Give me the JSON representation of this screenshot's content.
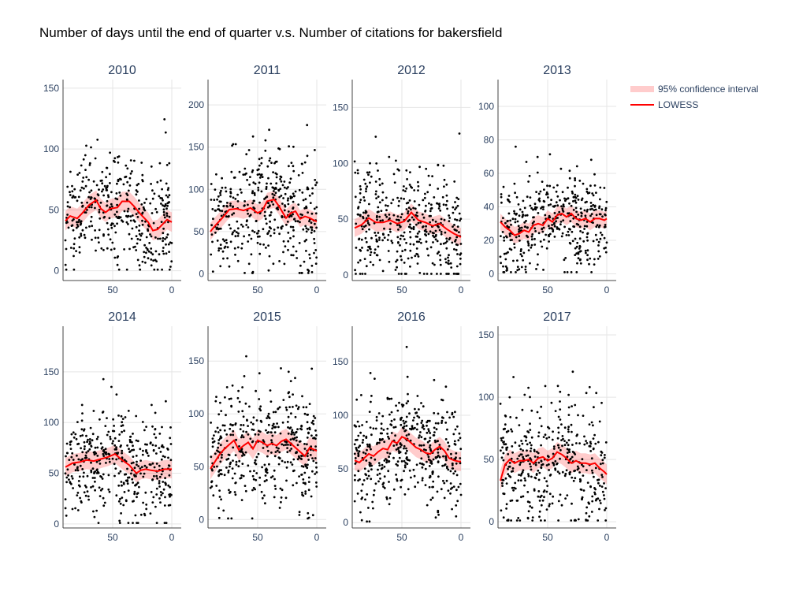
{
  "title": "Number of days until the end of quarter v.s. Number of citations for bakersfield",
  "colors": {
    "points": "#000000",
    "lowess": "#ff0000",
    "band": "rgba(255,0,0,0.2)",
    "grid": "#e5e5e5",
    "tick_text": "#2a3f5f",
    "axis": "#444444"
  },
  "legend": {
    "band_label": "95% confidence interval",
    "line_label": "LOWESS",
    "placement": "top-right"
  },
  "chart_data": [
    {
      "type": "scatter",
      "title": "2010",
      "xlim": [
        92,
        -8
      ],
      "ylim": [
        -8,
        157
      ],
      "xticks": [
        50,
        0
      ],
      "yticks": [
        0,
        50,
        100,
        150
      ],
      "lowess": {
        "x": [
          90,
          86,
          80,
          76,
          70,
          64,
          60,
          56,
          52,
          46,
          42,
          36,
          32,
          26,
          20,
          16,
          12,
          8,
          4,
          0
        ],
        "y": [
          41,
          45,
          43,
          47,
          54,
          58,
          51,
          48,
          51,
          52,
          57,
          57,
          53,
          46,
          40,
          33,
          34,
          38,
          42,
          40
        ]
      },
      "band_halfwidth": 8,
      "n_points": 390,
      "seed": 11,
      "scatter_mean": 47,
      "scatter_sd": 28,
      "scatter_max": 150
    },
    {
      "type": "scatter",
      "title": "2011",
      "xlim": [
        92,
        -8
      ],
      "ylim": [
        -8,
        230
      ],
      "xticks": [
        50,
        0
      ],
      "yticks": [
        0,
        50,
        100,
        150,
        200
      ],
      "lowess": {
        "x": [
          90,
          86,
          80,
          74,
          68,
          62,
          56,
          50,
          46,
          42,
          36,
          32,
          26,
          22,
          18,
          14,
          10,
          6,
          2,
          0
        ],
        "y": [
          50,
          57,
          66,
          76,
          77,
          75,
          78,
          72,
          75,
          86,
          88,
          80,
          66,
          72,
          74,
          65,
          68,
          66,
          63,
          62
        ]
      },
      "band_halfwidth": 10,
      "n_points": 420,
      "seed": 22,
      "scatter_mean": 72,
      "scatter_sd": 40,
      "scatter_max": 215
    },
    {
      "type": "scatter",
      "title": "2012",
      "xlim": [
        92,
        -8
      ],
      "ylim": [
        -5,
        175
      ],
      "xticks": [
        50,
        0
      ],
      "yticks": [
        0,
        50,
        100,
        150
      ],
      "lowess": {
        "x": [
          90,
          84,
          78,
          72,
          66,
          60,
          54,
          48,
          42,
          36,
          30,
          24,
          18,
          12,
          6,
          0
        ],
        "y": [
          42,
          45,
          51,
          47,
          47,
          49,
          46,
          48,
          56,
          49,
          47,
          44,
          46,
          41,
          37,
          34
        ]
      },
      "band_halfwidth": 8,
      "n_points": 420,
      "seed": 33,
      "scatter_mean": 50,
      "scatter_sd": 30,
      "scatter_max": 168
    },
    {
      "type": "scatter",
      "title": "2013",
      "xlim": [
        92,
        -8
      ],
      "ylim": [
        -4,
        116
      ],
      "xticks": [
        50,
        0
      ],
      "yticks": [
        0,
        20,
        40,
        60,
        80,
        100
      ],
      "lowess": {
        "x": [
          90,
          86,
          82,
          78,
          74,
          70,
          66,
          62,
          58,
          54,
          50,
          46,
          42,
          38,
          34,
          30,
          26,
          22,
          18,
          14,
          10,
          6,
          2,
          0
        ],
        "y": [
          31,
          28,
          26,
          23,
          24,
          26,
          25,
          29,
          30,
          29,
          33,
          31,
          35,
          36,
          34,
          36,
          33,
          32,
          33,
          31,
          33,
          33,
          32,
          33
        ]
      },
      "band_halfwidth": 5,
      "n_points": 420,
      "seed": 44,
      "scatter_mean": 32,
      "scatter_sd": 18,
      "scatter_max": 112
    },
    {
      "type": "scatter",
      "title": "2014",
      "xlim": [
        92,
        -8
      ],
      "ylim": [
        -4,
        195
      ],
      "xticks": [
        50,
        0
      ],
      "yticks": [
        0,
        50,
        100,
        150
      ],
      "lowess": {
        "x": [
          90,
          84,
          78,
          72,
          66,
          60,
          54,
          48,
          42,
          36,
          30,
          26,
          22,
          18,
          12,
          6,
          0
        ],
        "y": [
          56,
          60,
          61,
          63,
          62,
          64,
          66,
          69,
          63,
          58,
          50,
          53,
          54,
          53,
          52,
          54,
          54
        ]
      },
      "band_halfwidth": 9,
      "n_points": 420,
      "seed": 55,
      "scatter_mean": 60,
      "scatter_sd": 32,
      "scatter_max": 188
    },
    {
      "type": "scatter",
      "title": "2015",
      "xlim": [
        92,
        -8
      ],
      "ylim": [
        -8,
        183
      ],
      "xticks": [
        50,
        0
      ],
      "yticks": [
        0,
        50,
        100,
        150
      ],
      "lowess": {
        "x": [
          90,
          86,
          82,
          78,
          74,
          70,
          66,
          62,
          58,
          54,
          50,
          46,
          42,
          38,
          34,
          30,
          26,
          22,
          18,
          14,
          10,
          6,
          2,
          0
        ],
        "y": [
          48,
          55,
          62,
          67,
          71,
          75,
          66,
          70,
          73,
          67,
          75,
          73,
          70,
          72,
          70,
          74,
          76,
          72,
          68,
          64,
          60,
          68,
          66,
          65
        ]
      },
      "band_halfwidth": 10,
      "n_points": 440,
      "seed": 66,
      "scatter_mean": 70,
      "scatter_sd": 34,
      "scatter_max": 178
    },
    {
      "type": "scatter",
      "title": "2016",
      "xlim": [
        92,
        -8
      ],
      "ylim": [
        -5,
        183
      ],
      "xticks": [
        50,
        0
      ],
      "yticks": [
        0,
        50,
        100,
        150
      ],
      "lowess": {
        "x": [
          90,
          86,
          82,
          78,
          74,
          70,
          66,
          62,
          58,
          54,
          50,
          46,
          42,
          38,
          34,
          30,
          26,
          22,
          18,
          14,
          10,
          6,
          2,
          0
        ],
        "y": [
          58,
          56,
          60,
          64,
          62,
          66,
          69,
          68,
          76,
          74,
          80,
          78,
          74,
          70,
          68,
          65,
          64,
          68,
          71,
          67,
          60,
          58,
          57,
          57
        ]
      },
      "band_halfwidth": 9,
      "n_points": 440,
      "seed": 77,
      "scatter_mean": 70,
      "scatter_sd": 32,
      "scatter_max": 178
    },
    {
      "type": "scatter",
      "title": "2017",
      "xlim": [
        92,
        -8
      ],
      "ylim": [
        -5,
        157
      ],
      "xticks": [
        50,
        0
      ],
      "yticks": [
        0,
        50,
        100,
        150
      ],
      "lowess": {
        "x": [
          90,
          86,
          82,
          78,
          74,
          70,
          66,
          62,
          58,
          54,
          50,
          46,
          42,
          38,
          34,
          30,
          26,
          22,
          18,
          14,
          10,
          6,
          2,
          0
        ],
        "y": [
          33,
          46,
          50,
          47,
          49,
          49,
          50,
          47,
          51,
          52,
          49,
          51,
          56,
          54,
          51,
          47,
          49,
          47,
          47,
          46,
          47,
          43,
          40,
          38
        ]
      },
      "band_halfwidth": 8,
      "n_points": 420,
      "seed": 88,
      "scatter_mean": 52,
      "scatter_sd": 30,
      "scatter_max": 153
    }
  ]
}
